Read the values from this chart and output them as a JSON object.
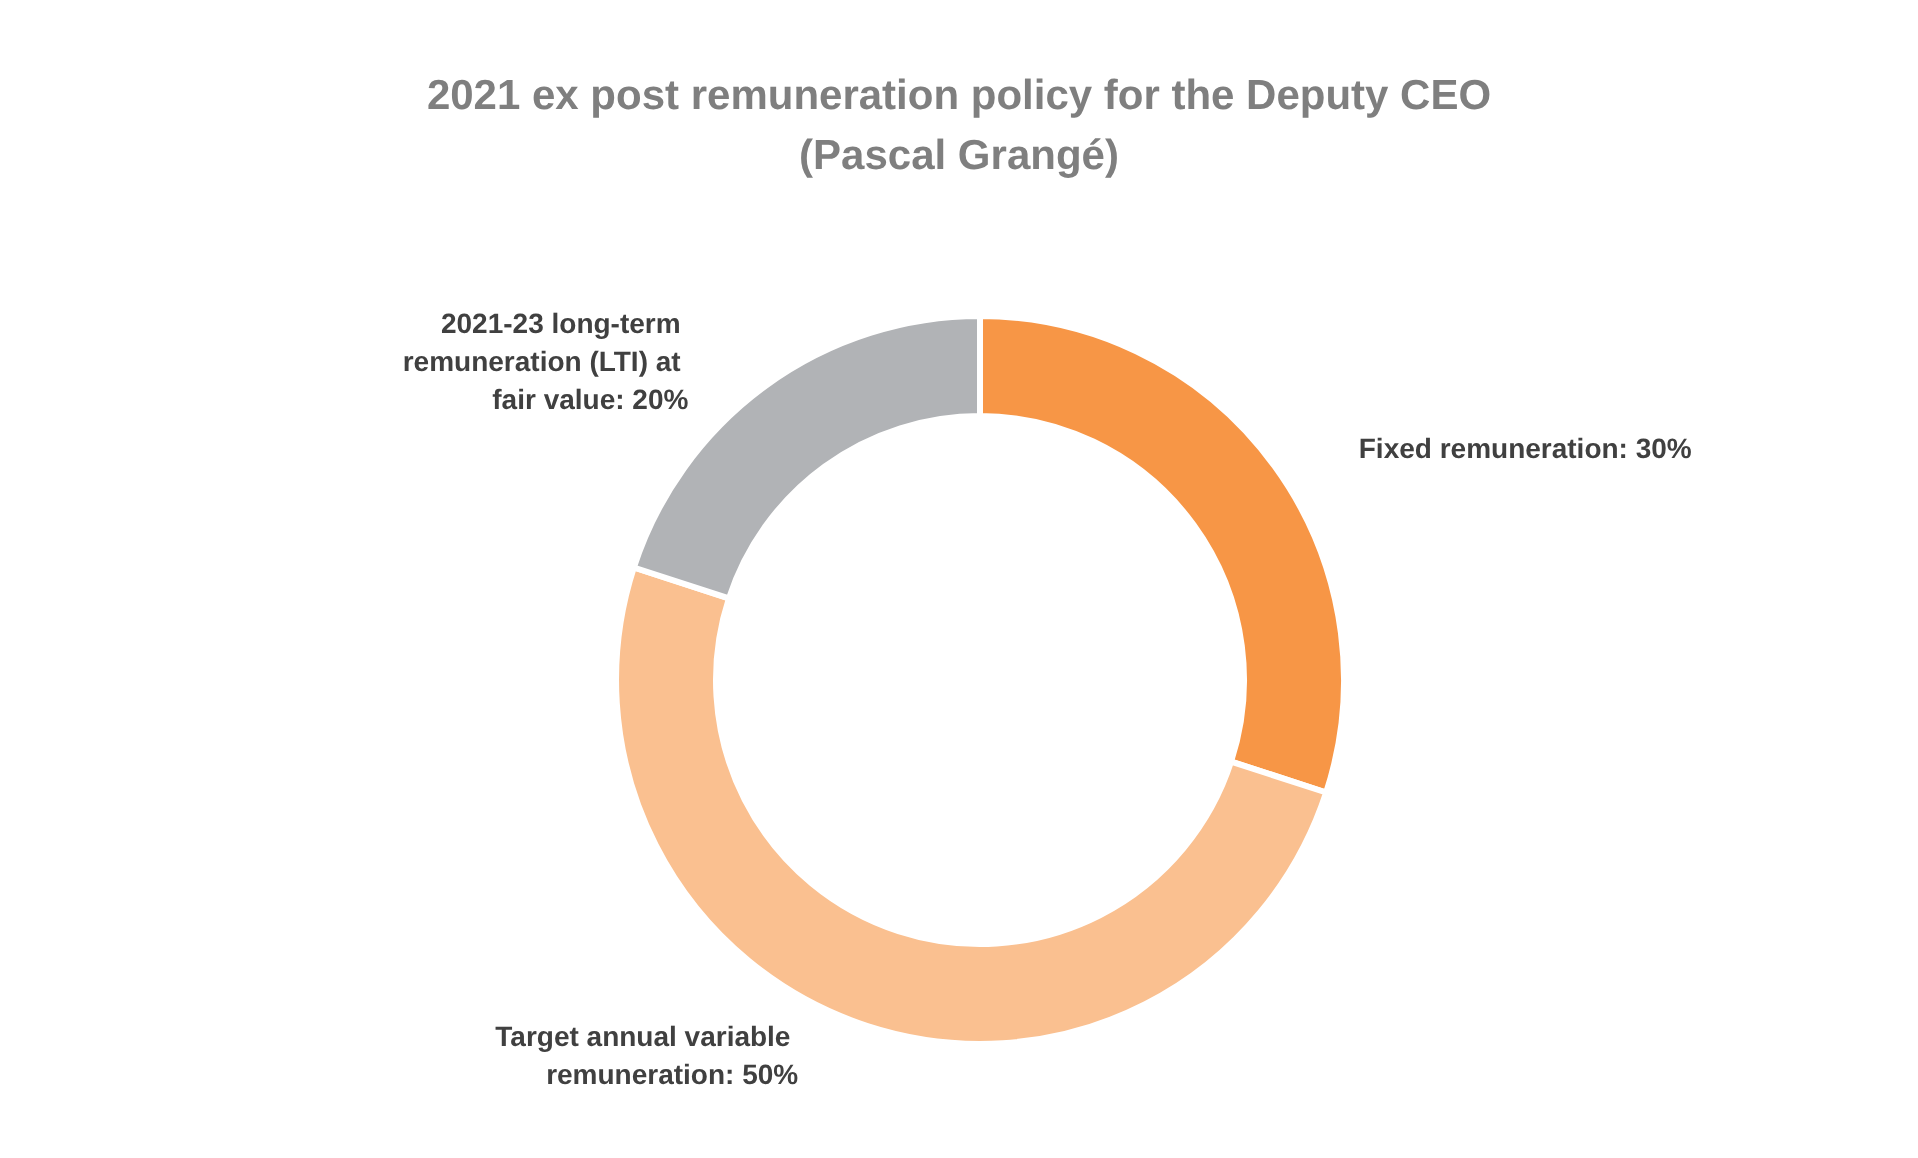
{
  "chart_data": {
    "type": "donut",
    "title": "2021 ex post remuneration policy for the Deputy CEO\n(Pascal Grangé)",
    "categories": [
      "Fixed remuneration",
      "Target annual variable remuneration",
      "2021-23 long-term remuneration (LTI) at fair value"
    ],
    "values": [
      30,
      50,
      20
    ],
    "value_labels": [
      "30%",
      "50%",
      "20%"
    ],
    "colors": [
      "#f79646",
      "#fac090",
      "#b1b3b6"
    ],
    "legend": false
  }
}
